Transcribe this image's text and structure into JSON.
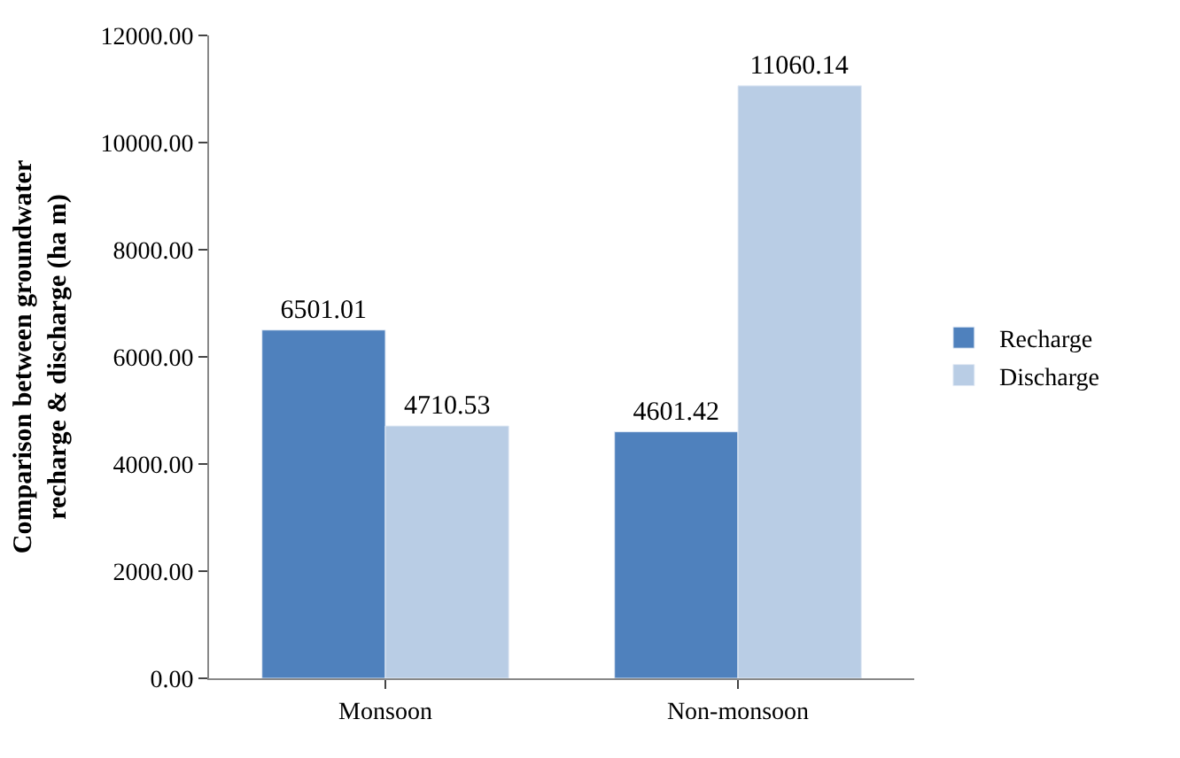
{
  "chart_data": {
    "type": "bar",
    "ylabel": "Comparison between groundwater recharge & discharge (ha m)",
    "categories": [
      "Monsoon",
      "Non-monsoon"
    ],
    "series": [
      {
        "name": "Recharge",
        "color": "#4f81bd",
        "values": [
          6501.01,
          4601.42
        ],
        "value_labels": [
          "6501.01",
          "4601.42"
        ]
      },
      {
        "name": "Discharge",
        "color": "#b9cde5",
        "values": [
          4710.53,
          11060.14
        ],
        "value_labels": [
          "4710.53",
          "11060.14"
        ]
      }
    ],
    "ylim": [
      0,
      12000
    ],
    "yticks": [
      {
        "value": 0,
        "label": "0.00"
      },
      {
        "value": 2000,
        "label": "2000.00"
      },
      {
        "value": 4000,
        "label": "4000.00"
      },
      {
        "value": 6000,
        "label": "6000.00"
      },
      {
        "value": 8000,
        "label": "8000.00"
      },
      {
        "value": 10000,
        "label": "10000.00"
      },
      {
        "value": 12000,
        "label": "12000.00"
      }
    ],
    "grid": false,
    "legend": "right"
  }
}
